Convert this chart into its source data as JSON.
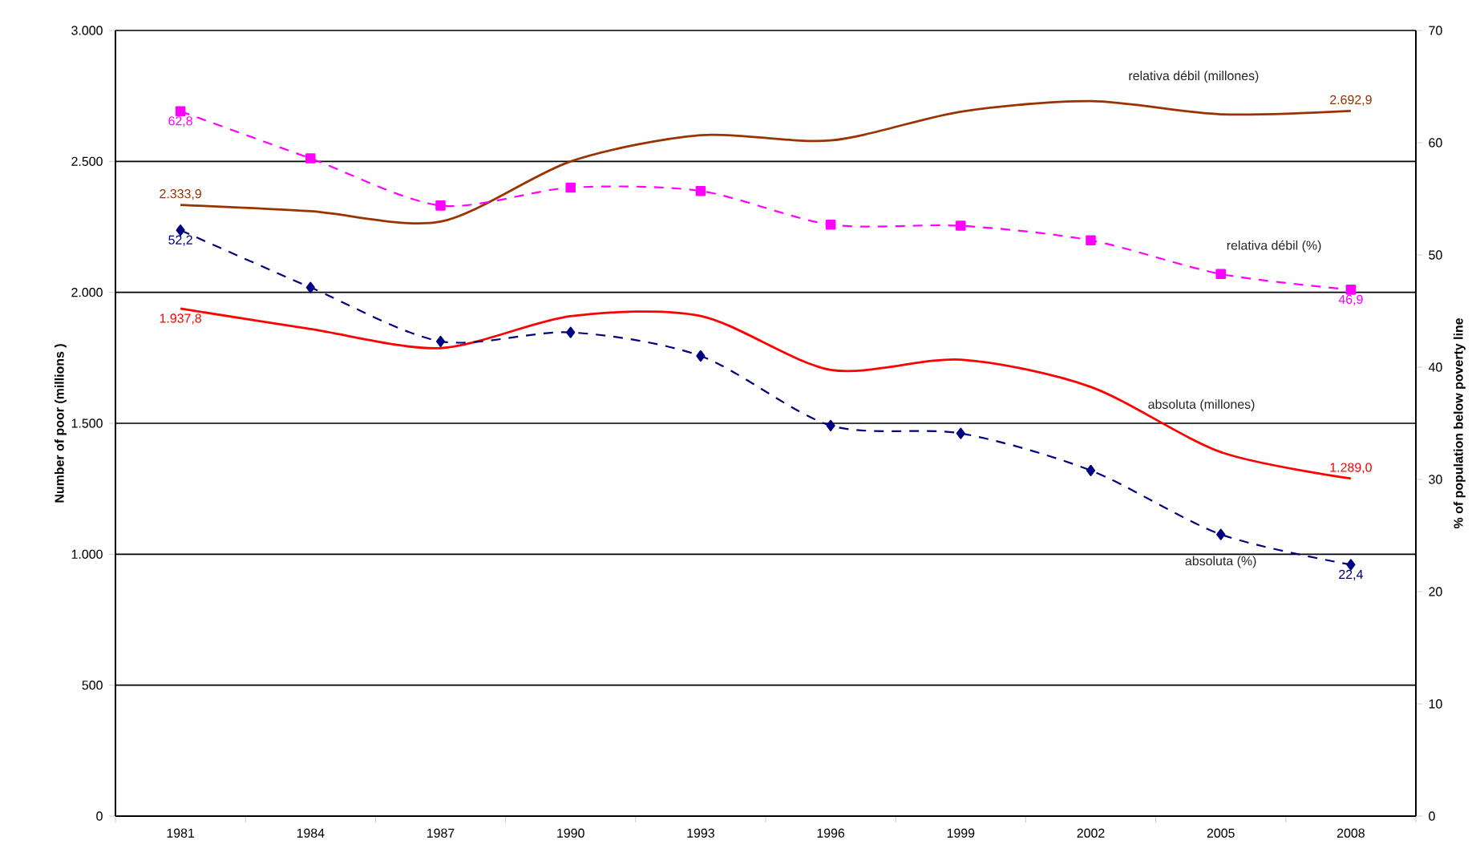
{
  "chart_data": {
    "type": "line",
    "categories": [
      "1981",
      "1984",
      "1987",
      "1990",
      "1993",
      "1996",
      "1999",
      "2002",
      "2005",
      "2008"
    ],
    "ylabel": "Number of poor (millions )",
    "y2label": "% of population below poverty line",
    "ylim": [
      0,
      3000
    ],
    "yticks": [
      {
        "value": 0,
        "label": "0"
      },
      {
        "value": 500,
        "label": "500"
      },
      {
        "value": 1000,
        "label": "1.000"
      },
      {
        "value": 1500,
        "label": "1.500"
      },
      {
        "value": 2000,
        "label": "2.000"
      },
      {
        "value": 2500,
        "label": "2.500"
      },
      {
        "value": 3000,
        "label": "3.000"
      }
    ],
    "y2lim": [
      0,
      70
    ],
    "y2ticks": [
      0,
      10,
      20,
      30,
      40,
      50,
      60,
      70
    ],
    "grid": "y",
    "series": [
      {
        "name": "relativa débil (millones)",
        "color": "#993300",
        "marker": "none",
        "line_style": "solid",
        "values": [
          2333.9,
          2310,
          2270,
          2500,
          2600,
          2580,
          2690,
          2730,
          2680,
          2692.9
        ],
        "value_labels": [
          "2.333,9",
          null,
          null,
          null,
          null,
          null,
          null,
          null,
          null,
          "2.692,9"
        ]
      },
      {
        "name": "relativa débil (%)",
        "color": "#ff00ff",
        "marker": "square",
        "line_style": "dashed",
        "axis": "y2",
        "values": [
          62.8,
          58.6,
          54.4,
          56.0,
          55.7,
          52.7,
          52.6,
          51.3,
          48.3,
          46.9
        ],
        "value_labels": [
          "62,8",
          null,
          null,
          null,
          null,
          null,
          null,
          null,
          null,
          "46,9"
        ]
      },
      {
        "name": "absoluta (millones)",
        "color": "#ff0000",
        "marker": "none",
        "line_style": "solid",
        "values": [
          1937.8,
          1860,
          1787,
          1909,
          1910,
          1704,
          1743,
          1639,
          1390,
          1289.0
        ],
        "value_labels": [
          "1.937,8",
          null,
          null,
          null,
          null,
          null,
          null,
          null,
          null,
          "1.289,0"
        ]
      },
      {
        "name": "absoluta (%)",
        "color": "#000080",
        "marker": "diamond",
        "line_style": "dashed",
        "axis": "y2",
        "values": [
          52.2,
          47.1,
          42.3,
          43.1,
          41.0,
          34.8,
          34.1,
          30.8,
          25.1,
          22.4
        ],
        "value_labels": [
          "52,2",
          null,
          null,
          null,
          null,
          null,
          null,
          null,
          null,
          "22,4"
        ]
      }
    ]
  }
}
